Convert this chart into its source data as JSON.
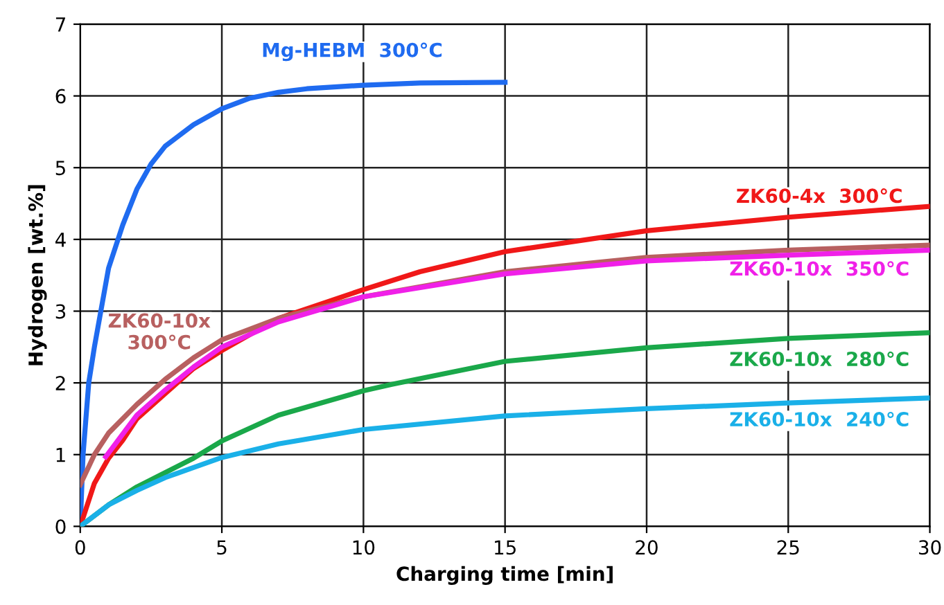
{
  "chart_data": {
    "type": "line",
    "xlabel": "Charging time [min]",
    "ylabel": "Hydrogen [wt.%]",
    "xlim": [
      0,
      30
    ],
    "ylim": [
      0,
      7
    ],
    "xticks": [
      0,
      5,
      10,
      15,
      20,
      25,
      30
    ],
    "yticks": [
      0,
      1,
      2,
      3,
      4,
      5,
      6,
      7
    ],
    "grid": true,
    "legend": false,
    "marker": "none",
    "line_style": "solid",
    "series": [
      {
        "name": "Mg-HEBM  300°C",
        "color": "#1f6bf0",
        "x": [
          0,
          0.1,
          0.3,
          0.5,
          1,
          1.5,
          2,
          2.5,
          3,
          4,
          5,
          6,
          7,
          8,
          10,
          12,
          15
        ],
        "values": [
          0,
          1.0,
          2.0,
          2.5,
          3.6,
          4.2,
          4.7,
          5.05,
          5.3,
          5.6,
          5.82,
          5.97,
          6.05,
          6.1,
          6.15,
          6.18,
          6.19
        ]
      },
      {
        "name": "ZK60-4x  300°C",
        "color": "#f01818",
        "x": [
          0,
          0.5,
          1,
          1.5,
          2,
          3,
          4,
          5,
          7,
          10,
          12,
          15,
          20,
          25,
          30
        ],
        "values": [
          0,
          0.6,
          0.95,
          1.2,
          1.5,
          1.85,
          2.2,
          2.45,
          2.9,
          3.3,
          3.55,
          3.83,
          4.12,
          4.31,
          4.46
        ]
      },
      {
        "name": "ZK60-10x\n300°C",
        "color": "#b86060",
        "x": [
          0,
          0.5,
          1,
          2,
          3,
          4,
          5,
          7,
          10,
          15,
          20,
          25,
          30
        ],
        "values": [
          0.58,
          1.0,
          1.3,
          1.7,
          2.05,
          2.35,
          2.6,
          2.9,
          3.2,
          3.55,
          3.75,
          3.85,
          3.92
        ]
      },
      {
        "name": "ZK60-10x  350°C",
        "color": "#f020e8",
        "x": [
          0.9,
          2,
          3,
          4,
          5,
          7,
          10,
          15,
          20,
          25,
          30
        ],
        "values": [
          0.97,
          1.55,
          1.9,
          2.22,
          2.5,
          2.85,
          3.2,
          3.52,
          3.7,
          3.78,
          3.85
        ]
      },
      {
        "name": "ZK60-10x  280°C",
        "color": "#1aa84a",
        "x": [
          0,
          1,
          2,
          3,
          4,
          5,
          7,
          10,
          11,
          15,
          20,
          25,
          30
        ],
        "values": [
          0,
          0.3,
          0.55,
          0.75,
          0.95,
          1.19,
          1.55,
          1.89,
          1.98,
          2.3,
          2.49,
          2.62,
          2.7
        ]
      },
      {
        "name": "ZK60-10x  240°C",
        "color": "#1ab0e8",
        "x": [
          0,
          1,
          2,
          3,
          4,
          5,
          7,
          10,
          15,
          20,
          25,
          30
        ],
        "values": [
          0,
          0.3,
          0.5,
          0.68,
          0.82,
          0.96,
          1.15,
          1.35,
          1.54,
          1.64,
          1.72,
          1.79
        ]
      }
    ]
  }
}
